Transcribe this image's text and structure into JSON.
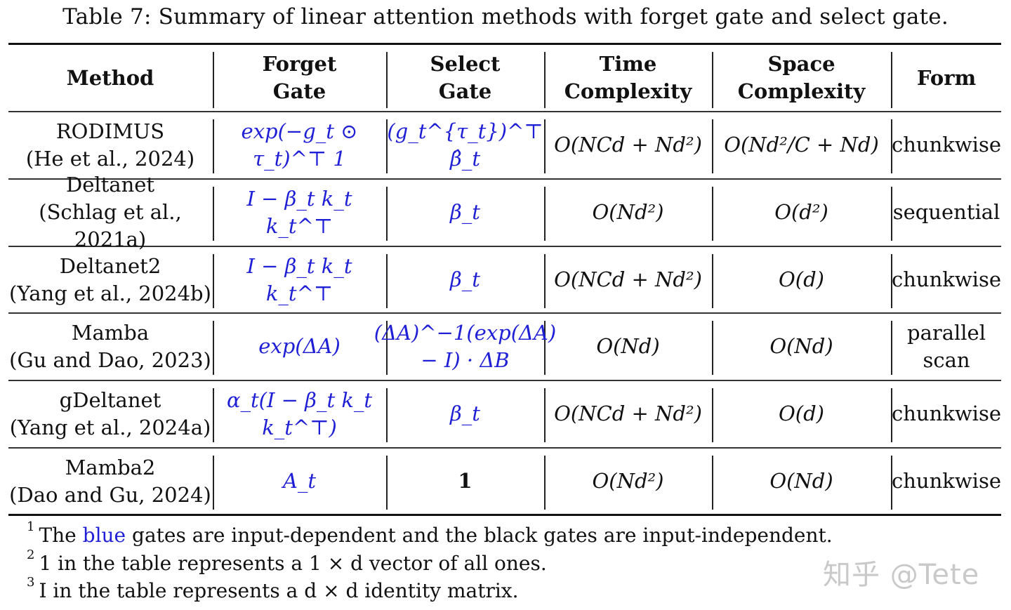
{
  "caption": "Table 7: Summary of linear attention methods with forget gate and select gate.",
  "table": {
    "headers": [
      {
        "line1": "Method",
        "line2": ""
      },
      {
        "line1": "Forget",
        "line2": "Gate"
      },
      {
        "line1": "Select",
        "line2": "Gate"
      },
      {
        "line1": "Time",
        "line2": "Complexity"
      },
      {
        "line1": "Space",
        "line2": "Complexity"
      },
      {
        "line1": "Form",
        "line2": ""
      }
    ],
    "rows": [
      {
        "method": "RODIMUS",
        "citation": "(He et al., 2024)",
        "forget_gate": "exp(−g_t ⊙ τ_t)^⊤ 1",
        "select_gate": "(g_t^{τ_t})^⊤ β̂_t",
        "time": "O(NCd + Nd²)",
        "space": "O(Nd²/C + Nd)",
        "form": "chunkwise"
      },
      {
        "method": "Deltanet",
        "citation": "(Schlag et al., 2021a)",
        "forget_gate": "I − β_t k_t k_t^⊤",
        "select_gate": "β_t",
        "time": "O(Nd²)",
        "space": "O(d²)",
        "form": "sequential"
      },
      {
        "method": "Deltanet2",
        "citation": "(Yang et al., 2024b)",
        "forget_gate": "I − β_t k_t k_t^⊤",
        "select_gate": "β_t",
        "time": "O(NCd + Nd²)",
        "space": "O(d)",
        "form": "chunkwise"
      },
      {
        "method": "Mamba",
        "citation": "(Gu and Dao, 2023)",
        "forget_gate": "exp(ΔA)",
        "select_gate": "(ΔA)^−1(exp(ΔA) − I) · ΔB",
        "time": "O(Nd)",
        "space": "O(Nd)",
        "form": "parallel scan"
      },
      {
        "method": "gDeltanet",
        "citation": "(Yang et al., 2024a)",
        "forget_gate": "α_t(I − β_t k_t k_t^⊤)",
        "select_gate": "β_t",
        "time": "O(NCd + Nd²)",
        "space": "O(d)",
        "form": "chunkwise"
      },
      {
        "method": "Mamba2",
        "citation": "(Dao and Gu, 2024)",
        "forget_gate": "A_t",
        "select_gate": "1",
        "time": "O(Nd²)",
        "space": "O(Nd)",
        "form": "chunkwise"
      }
    ]
  },
  "footnotes": [
    {
      "mark": "1",
      "pre": "The ",
      "blue": "blue",
      "post": " gates are input-dependent and the black gates are input-independent."
    },
    {
      "mark": "2",
      "text": "1 in the table represents a 1 × d vector of all ones."
    },
    {
      "mark": "3",
      "text": "I in the table represents a d × d identity matrix."
    }
  ],
  "watermark": "知乎 @Tete",
  "colors": {
    "input_dependent": "#1f1fd6",
    "text": "#111111"
  }
}
